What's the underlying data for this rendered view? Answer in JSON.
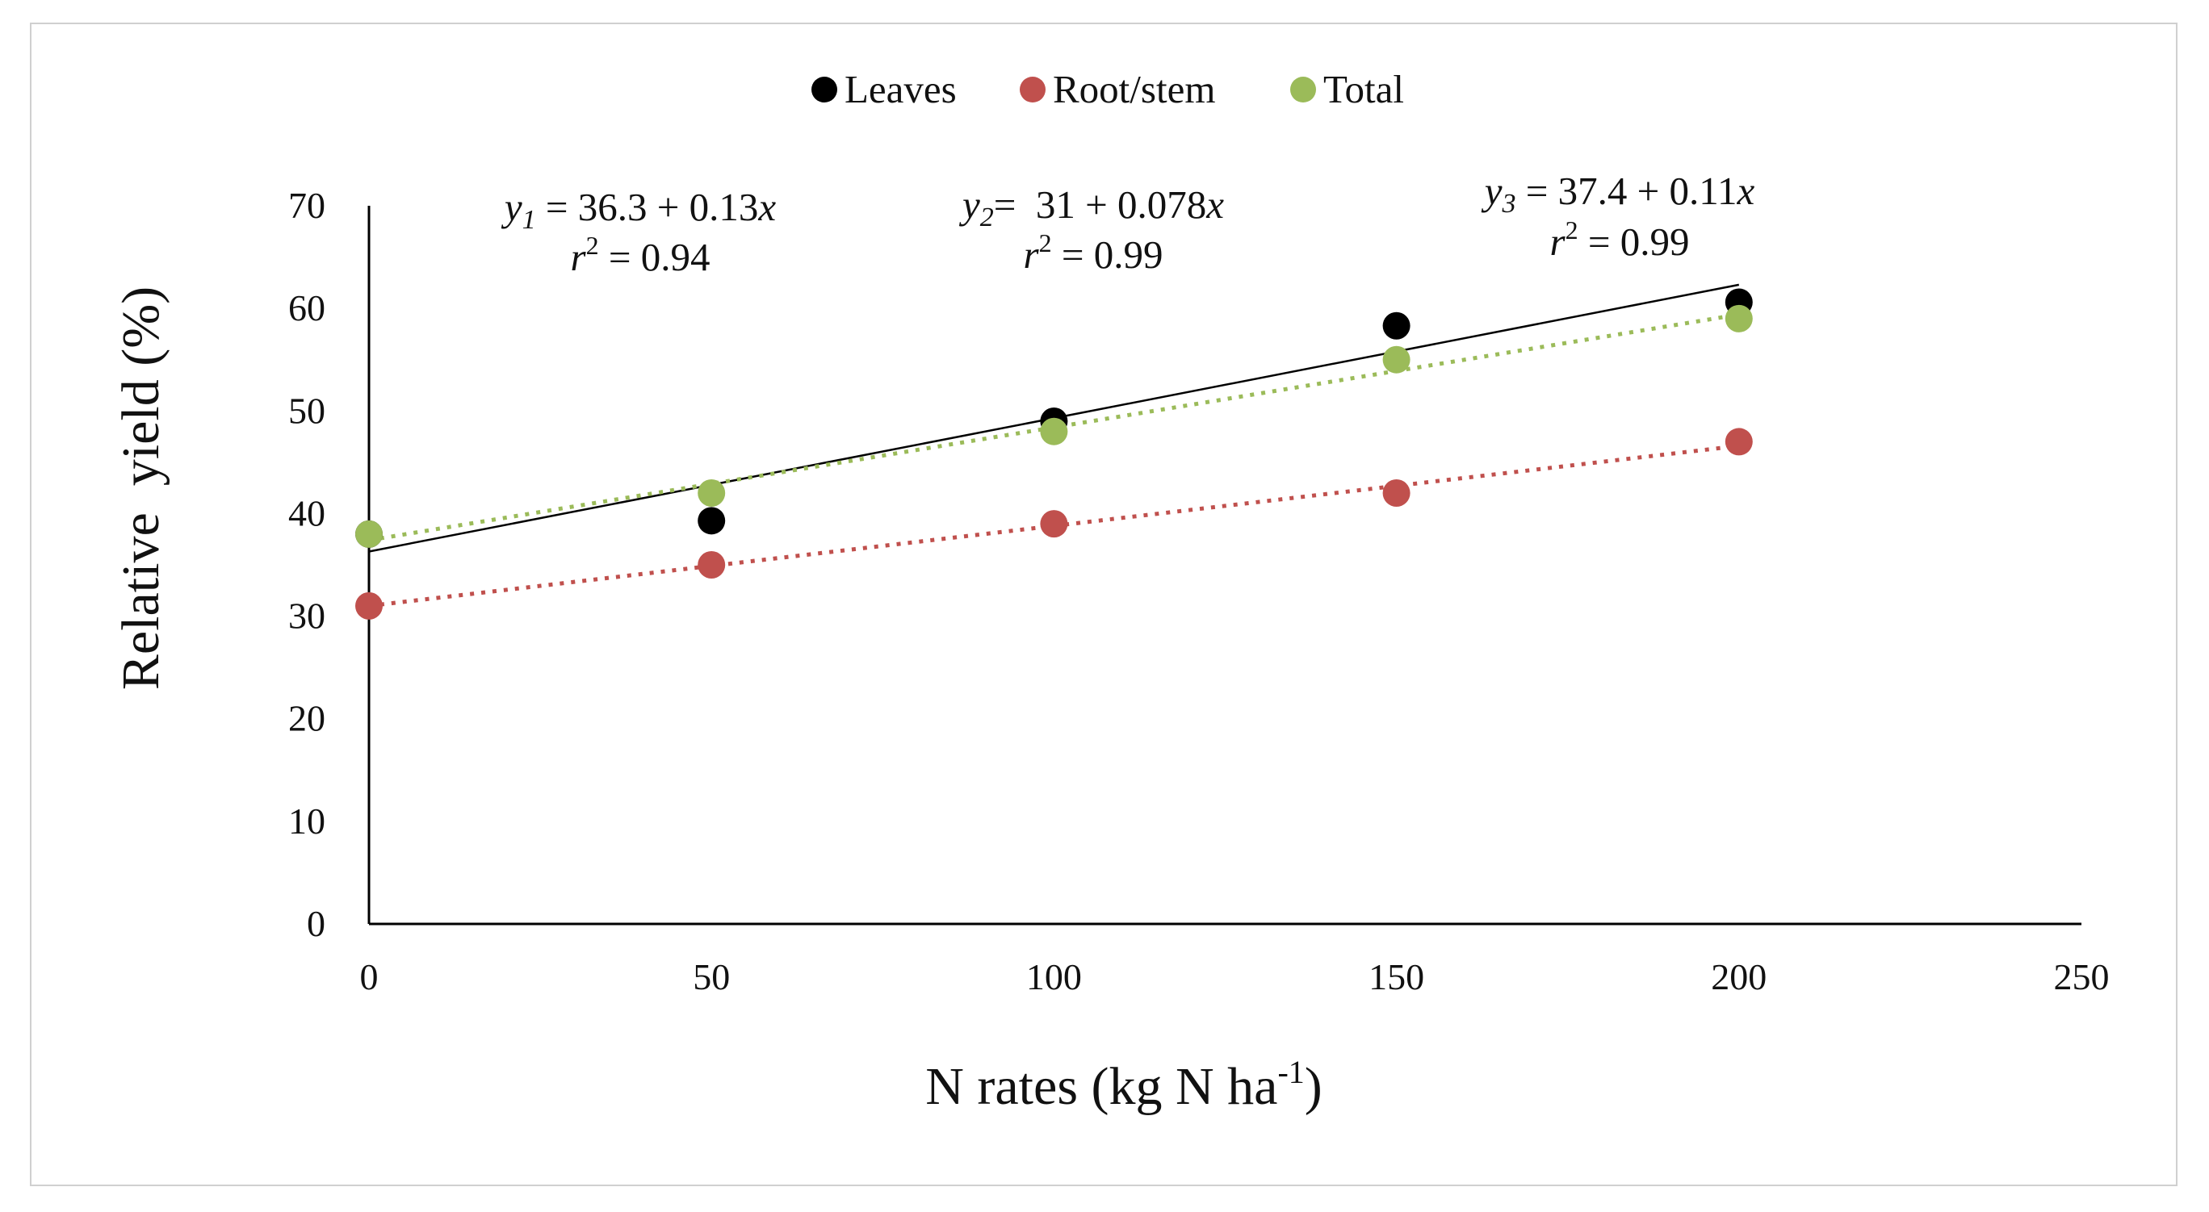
{
  "chart_data": {
    "type": "scatter",
    "title": "",
    "xlabel": "N rates (kg N ha",
    "xlabel_sup": "-1",
    "xlabel_tail": ")",
    "ylabel": "Relative  yield (%)",
    "xlim": [
      0,
      250
    ],
    "ylim": [
      0,
      70
    ],
    "x_ticks": [
      "0",
      "50",
      "100",
      "150",
      "200",
      "250"
    ],
    "y_ticks": [
      "0",
      "10",
      "20",
      "30",
      "40",
      "50",
      "60",
      "70"
    ],
    "x_tick_values": [
      0,
      50,
      100,
      150,
      200,
      250
    ],
    "y_tick_values": [
      0,
      10,
      20,
      30,
      40,
      50,
      60,
      70
    ],
    "grid": false,
    "legend_position": "top-center",
    "series": [
      {
        "name": "Leaves",
        "color": "#000000",
        "x": [
          0,
          50,
          100,
          150,
          200
        ],
        "y": [
          38,
          39.3,
          49,
          58.3,
          60.6
        ],
        "trendline": {
          "intercept": 36.3,
          "slope": 0.13,
          "style": "solid"
        }
      },
      {
        "name": "Root/stem",
        "color": "#c0504d",
        "x": [
          0,
          50,
          100,
          150,
          200
        ],
        "y": [
          31,
          35,
          39,
          42,
          47
        ],
        "trendline": {
          "intercept": 31,
          "slope": 0.078,
          "style": "dotted"
        }
      },
      {
        "name": "Total",
        "color": "#9bbb59",
        "x": [
          0,
          50,
          100,
          150,
          200
        ],
        "y": [
          38,
          42,
          48,
          55,
          59
        ],
        "trendline": {
          "intercept": 37.4,
          "slope": 0.11,
          "style": "dotted"
        }
      }
    ],
    "annotations": [
      {
        "var": "y",
        "sub": "1",
        "rhs": " = 36.3 + 0.13",
        "x": "x",
        "r2_prefix": "r",
        "r2_sup": "2",
        "r2_rhs": " = 0.94"
      },
      {
        "var": "y",
        "sub": "2",
        "rhs": "=  31 + 0.078",
        "x": "x",
        "r2_prefix": "r",
        "r2_sup": "2",
        "r2_rhs": " = 0.99"
      },
      {
        "var": "y",
        "sub": "3",
        "rhs": " = 37.4 + 0.11",
        "x": "x",
        "r2_prefix": "r",
        "r2_sup": "2",
        "r2_rhs": " = 0.99"
      }
    ]
  }
}
